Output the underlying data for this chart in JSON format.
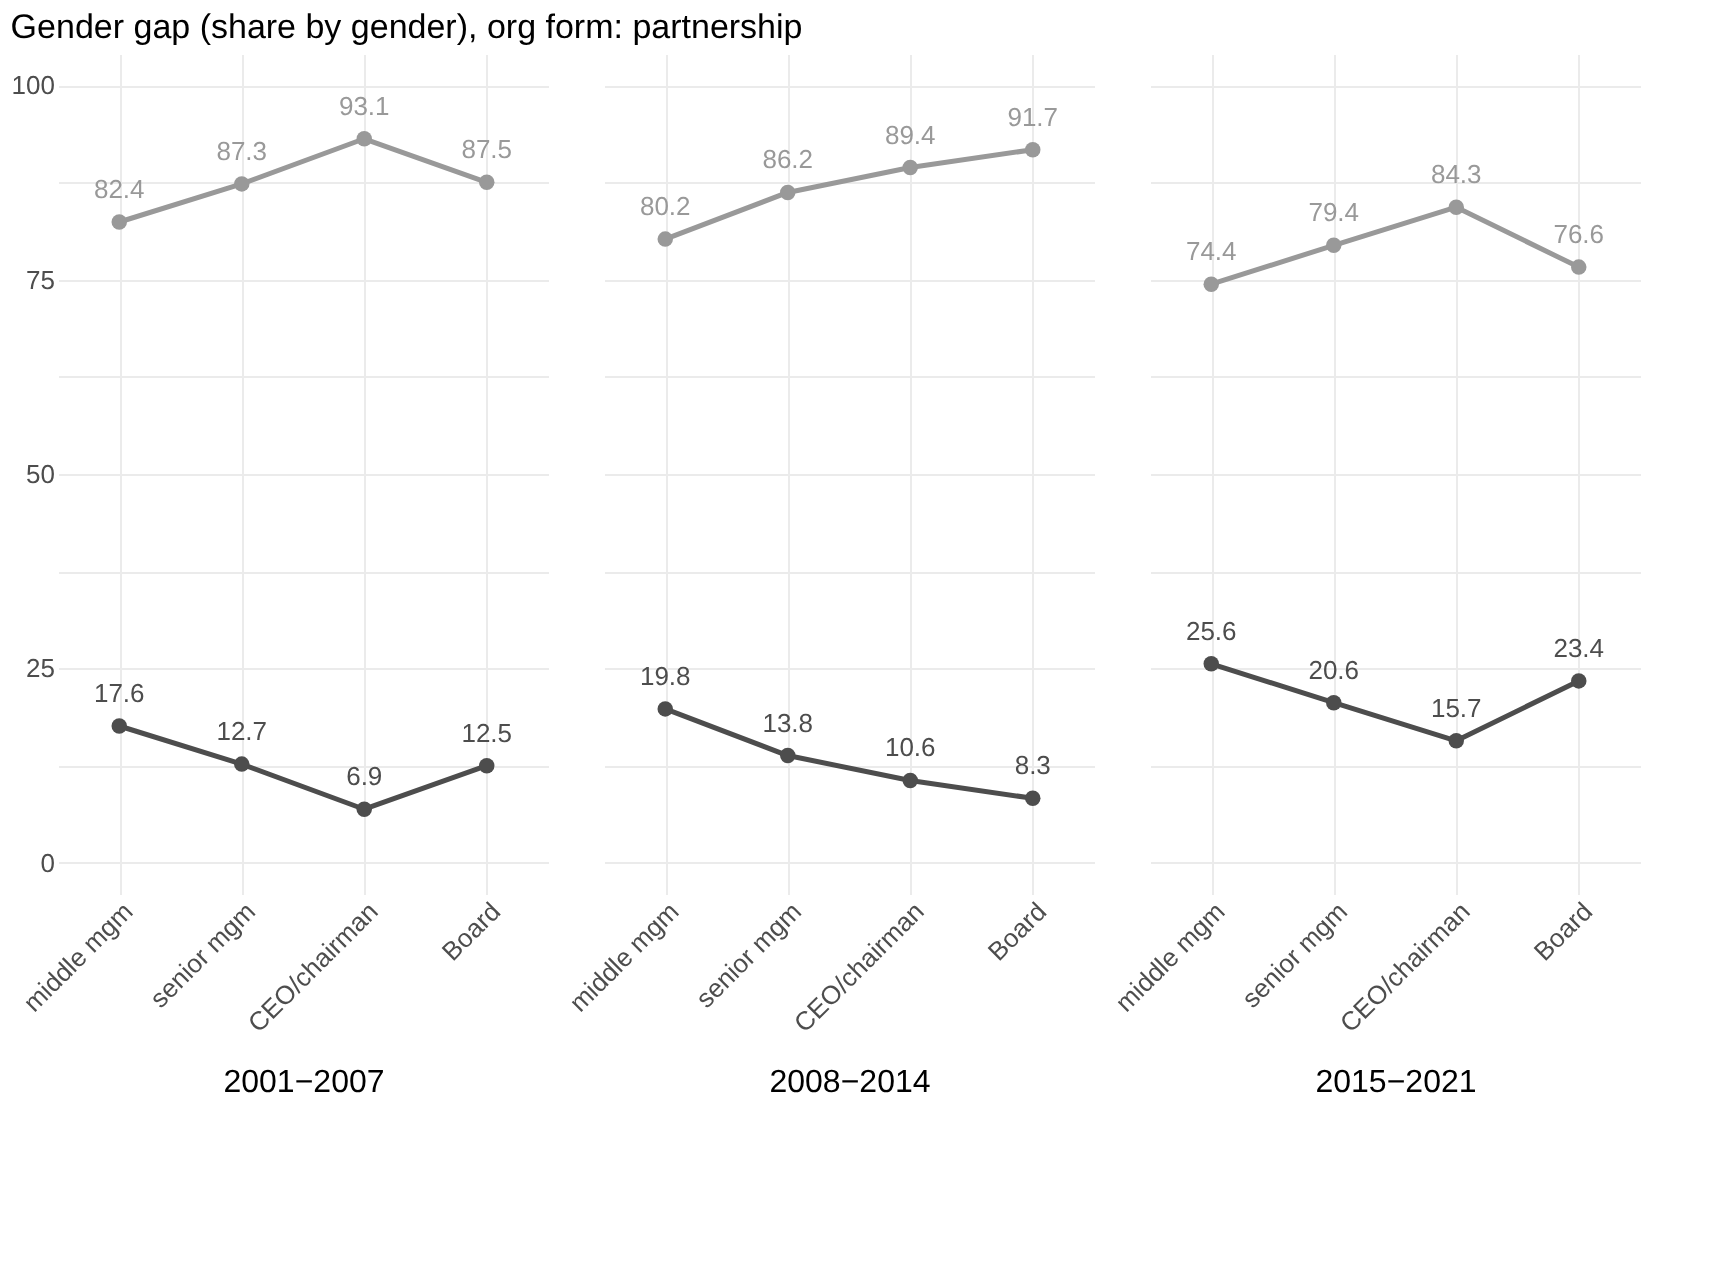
{
  "chart_data": [
    {
      "type": "line",
      "title": "Gender gap (share by gender), org form: partnership",
      "xlabel": "2001−2007",
      "categories": [
        "middle mgm",
        "senior mgm",
        "CEO/chairman",
        "Board"
      ],
      "series": [
        {
          "color": "#999999",
          "values": [
            82.4,
            87.3,
            93.1,
            87.5
          ]
        },
        {
          "color": "#4d4d4d",
          "values": [
            17.6,
            12.7,
            6.9,
            12.5
          ]
        }
      ],
      "ylim": [
        -4,
        104
      ],
      "yticks": [
        0,
        {
          "value": 12.5,
          "label": null
        },
        25,
        {
          "value": 37.5,
          "label": null
        },
        50,
        {
          "value": 62.5,
          "label": null
        },
        75,
        {
          "value": 87.5,
          "label": null
        },
        100
      ],
      "grid": true,
      "marker": "circle",
      "data_labels": true
    },
    {
      "type": "line",
      "xlabel": "2008−2014",
      "categories": [
        "middle mgm",
        "senior mgm",
        "CEO/chairman",
        "Board"
      ],
      "series": [
        {
          "color": "#999999",
          "values": [
            80.2,
            86.2,
            89.4,
            91.7
          ]
        },
        {
          "color": "#4d4d4d",
          "values": [
            19.8,
            13.8,
            10.6,
            8.3
          ]
        }
      ],
      "ylim": [
        -4,
        104
      ],
      "yticks": [
        0,
        {
          "value": 12.5,
          "label": null
        },
        25,
        {
          "value": 37.5,
          "label": null
        },
        50,
        {
          "value": 62.5,
          "label": null
        },
        75,
        {
          "value": 87.5,
          "label": null
        },
        100
      ],
      "grid": true,
      "marker": "circle",
      "data_labels": true,
      "tick_labels": "x"
    },
    {
      "type": "line",
      "xlabel": "2015−2021",
      "categories": [
        "middle mgm",
        "senior mgm",
        "CEO/chairman",
        "Board"
      ],
      "series": [
        {
          "color": "#999999",
          "values": [
            74.4,
            79.4,
            84.3,
            76.6
          ]
        },
        {
          "color": "#4d4d4d",
          "values": [
            25.6,
            20.6,
            15.7,
            23.4
          ]
        }
      ],
      "ylim": [
        -4,
        104
      ],
      "yticks": [
        0,
        {
          "value": 12.5,
          "label": null
        },
        25,
        {
          "value": 37.5,
          "label": null
        },
        50,
        {
          "value": 62.5,
          "label": null
        },
        75,
        {
          "value": 87.5,
          "label": null
        },
        100
      ],
      "grid": true,
      "marker": "circle",
      "data_labels": true,
      "tick_labels": "x"
    }
  ]
}
